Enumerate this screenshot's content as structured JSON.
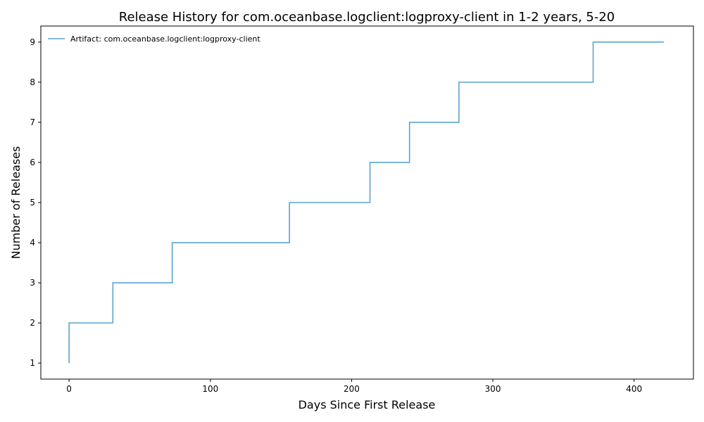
{
  "chart_data": {
    "type": "line",
    "step": "post",
    "title": "Release History for com.oceanbase.logclient:logproxy-client in 1-2 years, 5-20",
    "xlabel": "Days Since First Release",
    "ylabel": "Number of Releases",
    "xlim": [
      -20,
      442
    ],
    "ylim": [
      0.6,
      9.4
    ],
    "xticks": [
      0,
      100,
      200,
      300,
      400
    ],
    "yticks": [
      1,
      2,
      3,
      4,
      5,
      6,
      7,
      8,
      9
    ],
    "grid": false,
    "legend_position": "top-left",
    "series": [
      {
        "name": "Artifact: com.oceanbase.logclient:logproxy-client",
        "color": "#5ba3cf",
        "x": [
          0,
          0,
          31,
          73,
          156,
          213,
          241,
          276,
          371,
          421
        ],
        "y": [
          1,
          2,
          3,
          4,
          5,
          6,
          7,
          8,
          9,
          9
        ]
      }
    ]
  }
}
